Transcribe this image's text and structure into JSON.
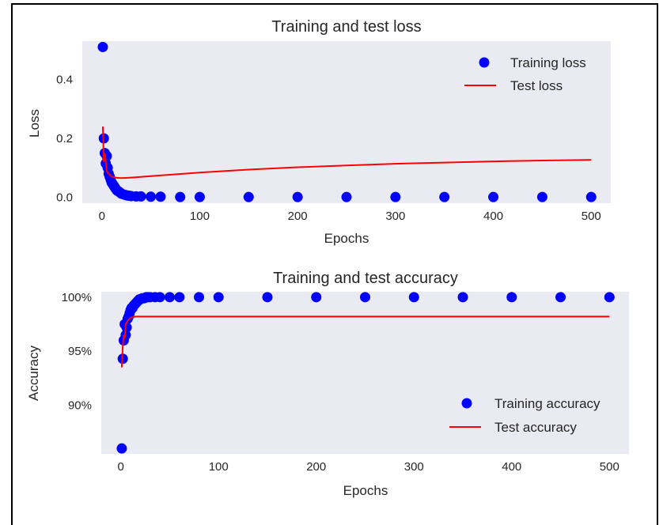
{
  "chart_data": [
    {
      "type": "line",
      "title": "Training and test loss",
      "xlabel": "Epochs",
      "ylabel": "Loss",
      "xlim": [
        -20,
        520
      ],
      "ylim": [
        -0.02,
        0.53
      ],
      "xticks": [
        0,
        100,
        200,
        300,
        400,
        500
      ],
      "yticks": [
        0.0,
        0.2,
        0.4
      ],
      "ytick_labels": [
        "0.0",
        "0.2",
        "0.4"
      ],
      "grid": false,
      "legend_position": "top-right",
      "series": [
        {
          "name": "Training loss",
          "style": "scatter",
          "color": "#0000ff",
          "x": [
            1,
            2,
            3,
            4,
            5,
            6,
            7,
            8,
            9,
            10,
            11,
            12,
            13,
            14,
            15,
            16,
            17,
            18,
            19,
            20,
            22,
            24,
            26,
            28,
            30,
            35,
            40,
            50,
            60,
            80,
            100,
            150,
            200,
            250,
            300,
            350,
            400,
            450,
            500
          ],
          "y": [
            0.51,
            0.2,
            0.15,
            0.115,
            0.14,
            0.1,
            0.08,
            0.07,
            0.06,
            0.05,
            0.045,
            0.04,
            0.035,
            0.03,
            0.025,
            0.022,
            0.02,
            0.018,
            0.015,
            0.012,
            0.01,
            0.008,
            0.006,
            0.005,
            0.004,
            0.003,
            0.003,
            0.002,
            0.002,
            0.001,
            0.001,
            0.001,
            0.001,
            0.001,
            0.001,
            0.001,
            0.001,
            0.001,
            0.001
          ]
        },
        {
          "name": "Test loss",
          "style": "line",
          "color": "#ff0000",
          "x": [
            1,
            2,
            3,
            5,
            7,
            10,
            15,
            20,
            30,
            50,
            75,
            100,
            150,
            200,
            250,
            300,
            350,
            400,
            450,
            500
          ],
          "y": [
            0.24,
            0.12,
            0.15,
            0.09,
            0.08,
            0.07,
            0.066,
            0.065,
            0.067,
            0.072,
            0.078,
            0.084,
            0.094,
            0.102,
            0.108,
            0.114,
            0.118,
            0.122,
            0.125,
            0.127
          ]
        }
      ]
    },
    {
      "type": "line",
      "title": "Training and test accuracy",
      "xlabel": "Epochs",
      "ylabel": "Accuracy",
      "xlim": [
        -20,
        520
      ],
      "ylim": [
        0.855,
        1.005
      ],
      "xticks": [
        0,
        100,
        200,
        300,
        400,
        500
      ],
      "yticks": [
        0.9,
        0.95,
        1.0
      ],
      "ytick_labels": [
        "90%",
        "95%",
        "100%"
      ],
      "grid": false,
      "legend_position": "lower-right",
      "series": [
        {
          "name": "Training accuracy",
          "style": "scatter",
          "color": "#0000ff",
          "x": [
            1,
            2,
            3,
            4,
            5,
            6,
            7,
            8,
            9,
            10,
            11,
            12,
            13,
            14,
            15,
            16,
            17,
            18,
            19,
            20,
            22,
            24,
            26,
            28,
            30,
            35,
            40,
            50,
            60,
            80,
            100,
            150,
            200,
            250,
            300,
            350,
            400,
            450,
            500
          ],
          "y": [
            0.86,
            0.943,
            0.96,
            0.975,
            0.965,
            0.972,
            0.98,
            0.982,
            0.985,
            0.988,
            0.99,
            0.99,
            0.992,
            0.993,
            0.994,
            0.995,
            0.996,
            0.997,
            0.998,
            0.998,
            0.999,
            0.999,
            1.0,
            1.0,
            1.0,
            1.0,
            1.0,
            1.0,
            1.0,
            1.0,
            1.0,
            1.0,
            1.0,
            1.0,
            1.0,
            1.0,
            1.0,
            1.0,
            1.0
          ]
        },
        {
          "name": "Test accuracy",
          "style": "line",
          "color": "#ff0000",
          "x": [
            1,
            2,
            3,
            4,
            5,
            7,
            10,
            15,
            20,
            30,
            50,
            100,
            200,
            300,
            400,
            500
          ],
          "y": [
            0.935,
            0.955,
            0.965,
            0.962,
            0.975,
            0.978,
            0.981,
            0.982,
            0.982,
            0.982,
            0.982,
            0.982,
            0.982,
            0.982,
            0.982,
            0.982
          ]
        }
      ]
    }
  ]
}
